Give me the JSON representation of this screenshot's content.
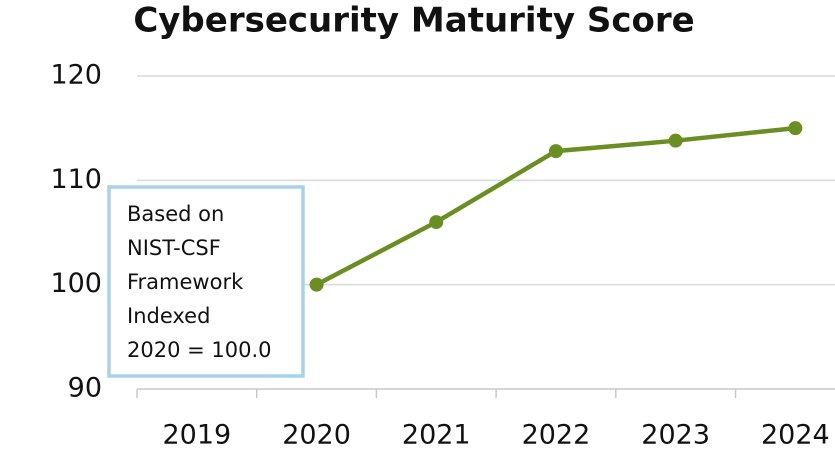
{
  "chart_data": {
    "type": "line",
    "title": "Cybersecurity Maturity Score",
    "categories": [
      "2019",
      "2020",
      "2021",
      "2022",
      "2023",
      "2024"
    ],
    "series": [
      {
        "name": "Cybersecurity Maturity Score",
        "color": "#6b8e23",
        "values": [
          null,
          100,
          106.0,
          112.8,
          113.8,
          115.0
        ]
      }
    ],
    "ylim": [
      90,
      120
    ],
    "yticks": [
      90,
      100,
      110,
      120
    ],
    "grid": true,
    "annotation": [
      "Based on",
      "NIST-CSF",
      "Framework",
      "Indexed",
      "2020 = 100.0"
    ]
  }
}
